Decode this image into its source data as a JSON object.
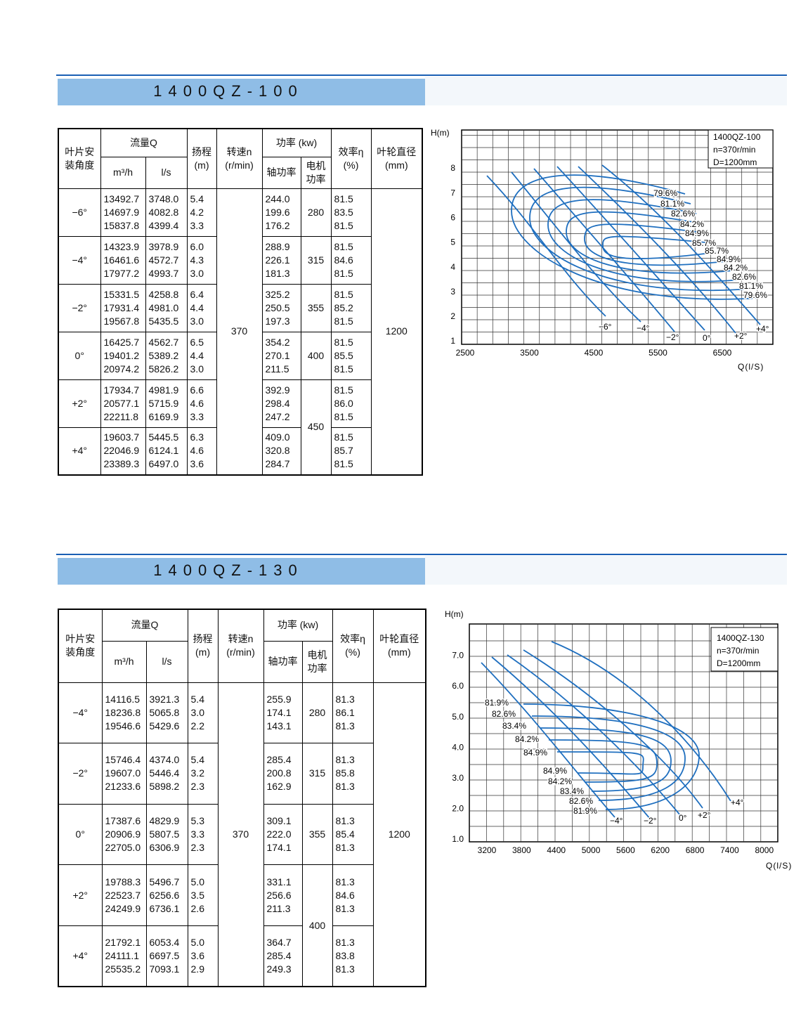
{
  "sections": [
    {
      "title": "1400QZ-100",
      "table": {
        "header": {
          "angle": [
            "叶片安",
            "装角度"
          ],
          "flow": "流量Q",
          "flow_m3h": "m³/h",
          "flow_ls": "l/s",
          "head": [
            "扬程",
            "(m)"
          ],
          "speed": [
            "转速n",
            "(r/min)"
          ],
          "power": "功率 (kw)",
          "shaft_power": "轴功率",
          "motor_power": [
            "电机",
            "功率"
          ],
          "efficiency": [
            "效率η",
            "(%)"
          ],
          "diameter": [
            "叶轮直径",
            "(mm)"
          ]
        },
        "speed": "370",
        "diameter": "1200",
        "groups": [
          {
            "angle": "−6°",
            "motor_power": "280",
            "rows": [
              [
                "13492.7",
                "3748.0",
                "5.4",
                "244.0",
                "81.5"
              ],
              [
                "14697.9",
                "4082.8",
                "4.2",
                "199.6",
                "83.5"
              ],
              [
                "15837.8",
                "4399.4",
                "3.3",
                "176.2",
                "81.5"
              ]
            ]
          },
          {
            "angle": "−4°",
            "motor_power": "315",
            "rows": [
              [
                "14323.9",
                "3978.9",
                "6.0",
                "288.9",
                "81.5"
              ],
              [
                "16461.6",
                "4572.7",
                "4.3",
                "226.1",
                "84.6"
              ],
              [
                "17977.2",
                "4993.7",
                "3.0",
                "181.3",
                "81.5"
              ]
            ]
          },
          {
            "angle": "−2°",
            "motor_power": "355",
            "rows": [
              [
                "15331.5",
                "4258.8",
                "6.4",
                "325.2",
                "81.5"
              ],
              [
                "17931.4",
                "4981.0",
                "4.4",
                "250.5",
                "85.2"
              ],
              [
                "19567.8",
                "5435.5",
                "3.0",
                "197.3",
                "81.5"
              ]
            ]
          },
          {
            "angle": "0°",
            "motor_power": "400",
            "rows": [
              [
                "16425.7",
                "4562.7",
                "6.5",
                "354.2",
                "81.5"
              ],
              [
                "19401.2",
                "5389.2",
                "4.4",
                "270.1",
                "85.5"
              ],
              [
                "20974.2",
                "5826.2",
                "3.0",
                "211.5",
                "81.5"
              ]
            ]
          },
          {
            "angle": "+2°",
            "motor_power": "450",
            "rows": [
              [
                "17934.7",
                "4981.9",
                "6.6",
                "392.9",
                "81.5"
              ],
              [
                "20577.1",
                "5715.9",
                "4.6",
                "298.4",
                "86.0"
              ],
              [
                "22211.8",
                "6169.9",
                "3.3",
                "247.2",
                "81.5"
              ]
            ]
          },
          {
            "angle": "+4°",
            "rows": [
              [
                "19603.7",
                "5445.5",
                "6.3",
                "409.0",
                "81.5"
              ],
              [
                "22046.9",
                "6124.1",
                "4.6",
                "320.8",
                "85.7"
              ],
              [
                "23389.3",
                "6497.0",
                "3.6",
                "284.7",
                "81.5"
              ]
            ]
          }
        ]
      },
      "chart": {
        "y_axis_label": "H(m)",
        "x_axis_label": "Q(l/S)",
        "yticks": [
          "1",
          "2",
          "3",
          "4",
          "5",
          "6",
          "7",
          "8"
        ],
        "xticks": [
          "2500",
          "3500",
          "4500",
          "5500",
          "6500"
        ],
        "legend": [
          "1400QZ-100",
          "n=370r/min",
          "D=1200mm"
        ],
        "efficiency_labels": [
          "79.6%",
          "81.1%",
          "82.6%",
          "84.2%",
          "84.9%",
          "85.7%",
          "85.7%",
          "84.9%",
          "84.2%",
          "82.6%",
          "81.1%",
          "79.6%"
        ],
        "angle_labels": [
          "−6°",
          "−4°",
          "−2°",
          "0°",
          "+2°",
          "+4°"
        ]
      }
    },
    {
      "title": "1400QZ-130",
      "table": {
        "header": {
          "angle": [
            "叶片安",
            "装角度"
          ],
          "flow": "流量Q",
          "flow_m3h": "m³/h",
          "flow_ls": "l/s",
          "head": [
            "扬程",
            "(m)"
          ],
          "speed": [
            "转速n",
            "(r/min)"
          ],
          "power": "功率 (kw)",
          "shaft_power": "轴功率",
          "motor_power": [
            "电机",
            "功率"
          ],
          "efficiency": [
            "效率η",
            "(%)"
          ],
          "diameter": [
            "叶轮直径",
            "(mm)"
          ]
        },
        "speed": "370",
        "diameter": "1200",
        "groups": [
          {
            "angle": "−4°",
            "motor_power": "280",
            "rows": [
              [
                "14116.5",
                "3921.3",
                "5.4",
                "255.9",
                "81.3"
              ],
              [
                "18236.8",
                "5065.8",
                "3.0",
                "174.1",
                "86.1"
              ],
              [
                "19546.6",
                "5429.6",
                "2.2",
                "143.1",
                "81.3"
              ]
            ]
          },
          {
            "angle": "−2°",
            "motor_power": "315",
            "rows": [
              [
                "15746.4",
                "4374.0",
                "5.4",
                "285.4",
                "81.3"
              ],
              [
                "19607.0",
                "5446.4",
                "3.2",
                "200.8",
                "85.8"
              ],
              [
                "21233.6",
                "5898.2",
                "2.3",
                "162.9",
                "81.3"
              ]
            ]
          },
          {
            "angle": "0°",
            "motor_power": "355",
            "rows": [
              [
                "17387.6",
                "4829.9",
                "5.3",
                "309.1",
                "81.3"
              ],
              [
                "20906.9",
                "5807.5",
                "3.3",
                "222.0",
                "85.4"
              ],
              [
                "22705.0",
                "6306.9",
                "2.3",
                "174.1",
                "81.3"
              ]
            ]
          },
          {
            "angle": "+2°",
            "motor_power": "400",
            "rows": [
              [
                "19788.3",
                "5496.7",
                "5.0",
                "331.1",
                "81.3"
              ],
              [
                "22523.7",
                "6256.6",
                "3.5",
                "256.6",
                "84.6"
              ],
              [
                "24249.9",
                "6736.1",
                "2.6",
                "211.3",
                "81.3"
              ]
            ]
          },
          {
            "angle": "+4°",
            "rows": [
              [
                "21792.1",
                "6053.4",
                "5.0",
                "364.7",
                "81.3"
              ],
              [
                "24111.1",
                "6697.5",
                "3.6",
                "285.4",
                "83.8"
              ],
              [
                "25535.2",
                "7093.1",
                "2.9",
                "249.3",
                "81.3"
              ]
            ]
          }
        ]
      },
      "chart": {
        "y_axis_label": "H(m)",
        "x_axis_label": "Q(l/S)",
        "yticks": [
          "1.0",
          "2.0",
          "3.0",
          "4.0",
          "5.0",
          "6.0",
          "7.0"
        ],
        "xticks": [
          "3200",
          "3800",
          "4400",
          "5000",
          "5600",
          "6200",
          "6800",
          "7400",
          "8000"
        ],
        "legend": [
          "1400QZ-130",
          "n=370r/min",
          "D=1200mm"
        ],
        "efficiency_labels": [
          "81.9%",
          "82.6%",
          "83.4%",
          "84.2%",
          "84.9%",
          "84.9%",
          "84.2%",
          "83.4%",
          "82.6%",
          "81.9%"
        ],
        "angle_labels": [
          "−4°",
          "−2°",
          "0°",
          "+2°",
          "+4°"
        ]
      }
    }
  ]
}
